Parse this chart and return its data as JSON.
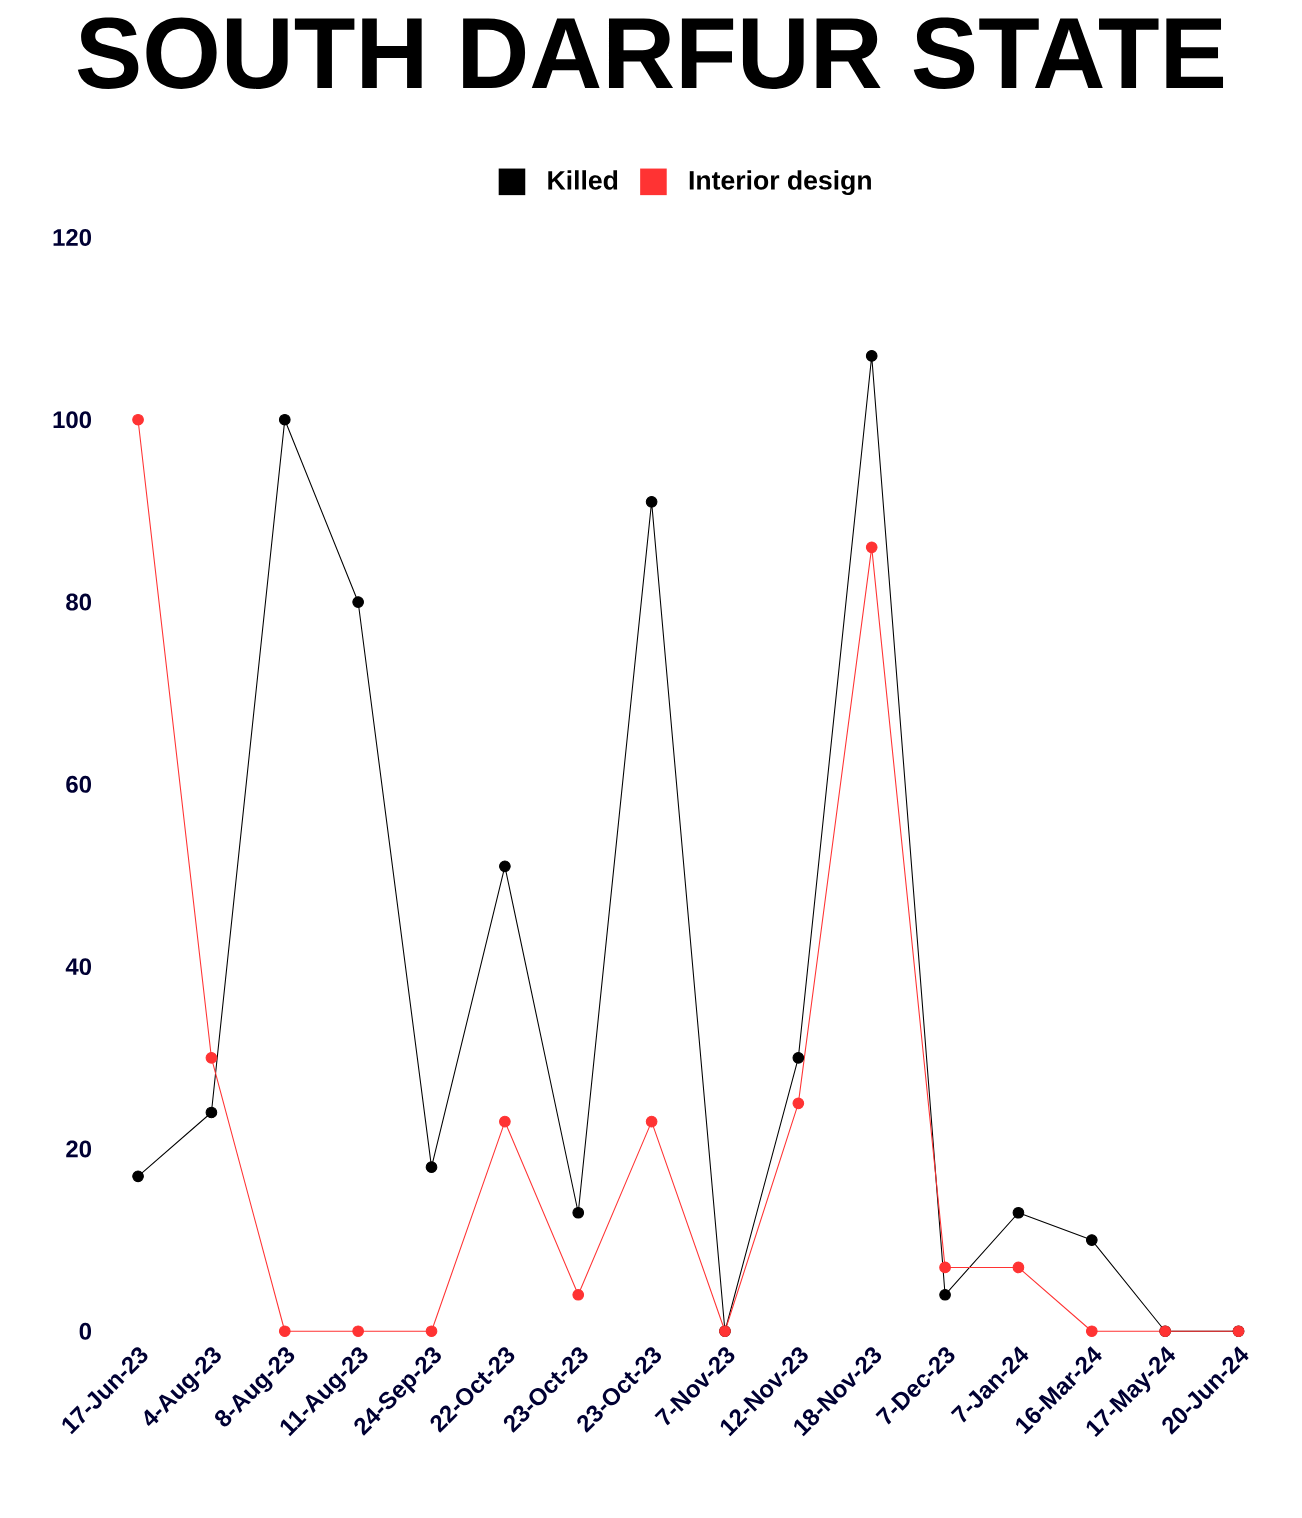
{
  "chart_data": {
    "type": "line",
    "title": "SOUTH DARFUR STATE",
    "categories": [
      "17-Jun-23",
      "4-Aug-23",
      "8-Aug-23",
      "11-Aug-23",
      "24-Sep-23",
      "22-Oct-23",
      "23-Oct-23",
      "23-Oct-23",
      "7-Nov-23",
      "12-Nov-23",
      "18-Nov-23",
      "7-Dec-23",
      "7-Jan-24",
      "16-Mar-24",
      "17-May-24",
      "20-Jun-24"
    ],
    "series": [
      {
        "name": "Killed",
        "color": "#000000",
        "values": [
          17,
          24,
          100,
          80,
          18,
          51,
          13,
          91,
          0,
          30,
          107,
          4,
          13,
          10,
          0,
          0
        ]
      },
      {
        "name": "Interior design",
        "color": "#ff3333",
        "values": [
          100,
          30,
          0,
          0,
          0,
          23,
          4,
          23,
          0,
          25,
          86,
          7,
          7,
          0,
          0,
          0
        ]
      }
    ],
    "ylim": [
      0,
      120
    ],
    "yticks": [
      0,
      20,
      40,
      60,
      80,
      100,
      120
    ],
    "legend": "top",
    "marker": "circle",
    "line_style": "solid"
  }
}
